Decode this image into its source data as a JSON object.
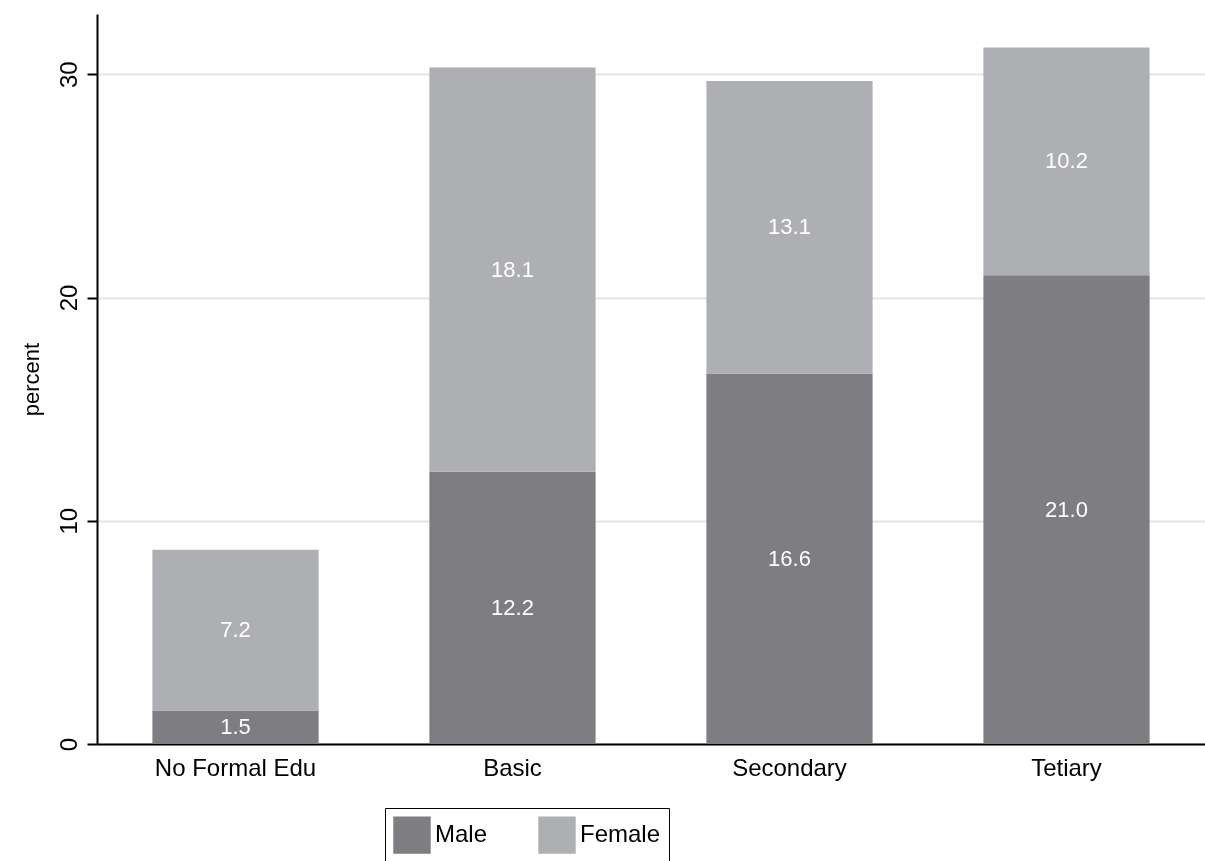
{
  "chart_data": {
    "type": "bar",
    "stacked": true,
    "ylabel": "percent",
    "categories": [
      "No Formal Edu",
      "Basic",
      "Secondary",
      "Tetiary"
    ],
    "series": [
      {
        "name": "Male",
        "color": "#7d7d82",
        "values": [
          1.5,
          12.2,
          16.6,
          21.0
        ],
        "value_labels": [
          "1.5",
          "12.2",
          "16.6",
          "21.0"
        ]
      },
      {
        "name": "Female",
        "color": "#aeafb3",
        "values": [
          7.2,
          18.1,
          13.1,
          10.2
        ],
        "value_labels": [
          "7.2",
          "18.1",
          "13.1",
          "10.2"
        ]
      }
    ],
    "ylim": [
      0,
      32.7
    ],
    "yticks": [
      0,
      10,
      20,
      30
    ],
    "grid": "y",
    "legend": "bottom"
  }
}
